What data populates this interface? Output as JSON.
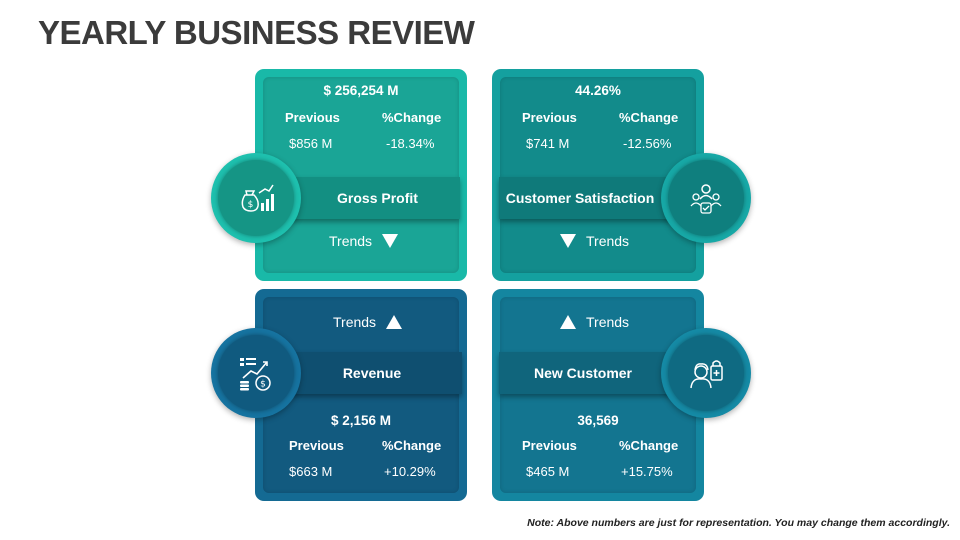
{
  "title": "YEARLY BUSINESS REVIEW",
  "note": "Note: Above numbers are just for representation. You may change them accordingly.",
  "cards": [
    {
      "name": "Gross Profit",
      "value": "$ 256,254 M",
      "previous_label": "Previous",
      "change_label": "%Change",
      "previous": "$856 M",
      "change": "-18.34%",
      "trend_label": "Trends",
      "trend": "down",
      "icon": "money-bag-growth-icon"
    },
    {
      "name": "Customer Satisfaction",
      "value": "44.26%",
      "previous_label": "Previous",
      "change_label": "%Change",
      "previous": "$741 M",
      "change": "-12.56%",
      "trend_label": "Trends",
      "trend": "down",
      "icon": "customer-satisfaction-icon"
    },
    {
      "name": "Revenue",
      "value": "$ 2,156 M",
      "previous_label": "Previous",
      "change_label": "%Change",
      "previous": "$663 M",
      "change": "+10.29%",
      "trend_label": "Trends",
      "trend": "up",
      "icon": "revenue-chart-icon"
    },
    {
      "name": "New Customer",
      "value": "36,569",
      "previous_label": "Previous",
      "change_label": "%Change",
      "previous": "$465 M",
      "change": "+15.75%",
      "trend_label": "Trends",
      "trend": "up",
      "icon": "new-customer-icon"
    }
  ],
  "colors": {
    "teal_light": "#19b9a8",
    "teal": "#14a09f",
    "blue_dark": "#146a93",
    "blue_teal": "#1486a0",
    "title": "#3b3b3b"
  }
}
